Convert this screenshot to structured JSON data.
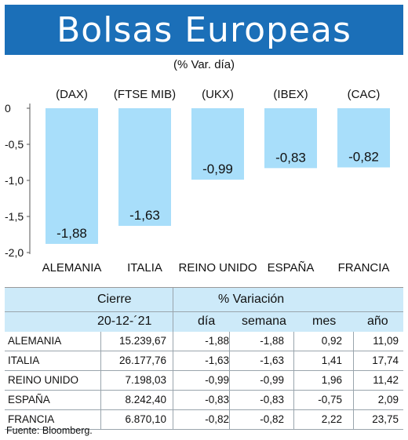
{
  "title": "Bolsas Europeas",
  "subtitle": "(% Var. día)",
  "chart_data": {
    "type": "bar",
    "categories": [
      "ALEMANIA",
      "ITALIA",
      "REINO UNIDO",
      "ESPAÑA",
      "FRANCIA"
    ],
    "index_labels": [
      "(DAX)",
      "(FTSE MIB)",
      "(UKX)",
      "(IBEX)",
      "(CAC)"
    ],
    "values": [
      -1.88,
      -1.63,
      -0.99,
      -0.83,
      -0.82
    ],
    "value_labels": [
      "-1,88",
      "-1,63",
      "-0,99",
      "-0,83",
      "-0,82"
    ],
    "ylim": [
      -2.0,
      0
    ],
    "yticks": [
      0,
      -0.5,
      -1.0,
      -1.5,
      -2.0
    ],
    "ytick_labels": [
      "0",
      "-0,5",
      "-1,0",
      "-1,5",
      "-2,0"
    ],
    "bar_color": "#a8defa",
    "grid": false
  },
  "table": {
    "header_group_left": "Cierre",
    "header_group_right": "% Variación",
    "date": "20-12-´21",
    "columns": [
      "día",
      "semana",
      "mes",
      "año"
    ],
    "rows": [
      {
        "name": "ALEMANIA",
        "cierre": "15.239,67",
        "dia": "-1,88",
        "semana": "-1,88",
        "mes": "0,92",
        "ano": "11,09"
      },
      {
        "name": "ITALIA",
        "cierre": "26.177,76",
        "dia": "-1,63",
        "semana": "-1,63",
        "mes": "1,41",
        "ano": "17,74"
      },
      {
        "name": "REINO UNIDO",
        "cierre": "7.198,03",
        "dia": "-0,99",
        "semana": "-0,99",
        "mes": "1,96",
        "ano": "11,42"
      },
      {
        "name": "ESPAÑA",
        "cierre": "8.242,40",
        "dia": "-0,83",
        "semana": "-0,83",
        "mes": "-0,75",
        "ano": "2,09"
      },
      {
        "name": "FRANCIA",
        "cierre": "6.870,10",
        "dia": "-0,82",
        "semana": "-0,82",
        "mes": "2,22",
        "ano": "23,75"
      }
    ],
    "header_bg": "#cdeaf9"
  },
  "source": "Fuente: Bloomberg."
}
